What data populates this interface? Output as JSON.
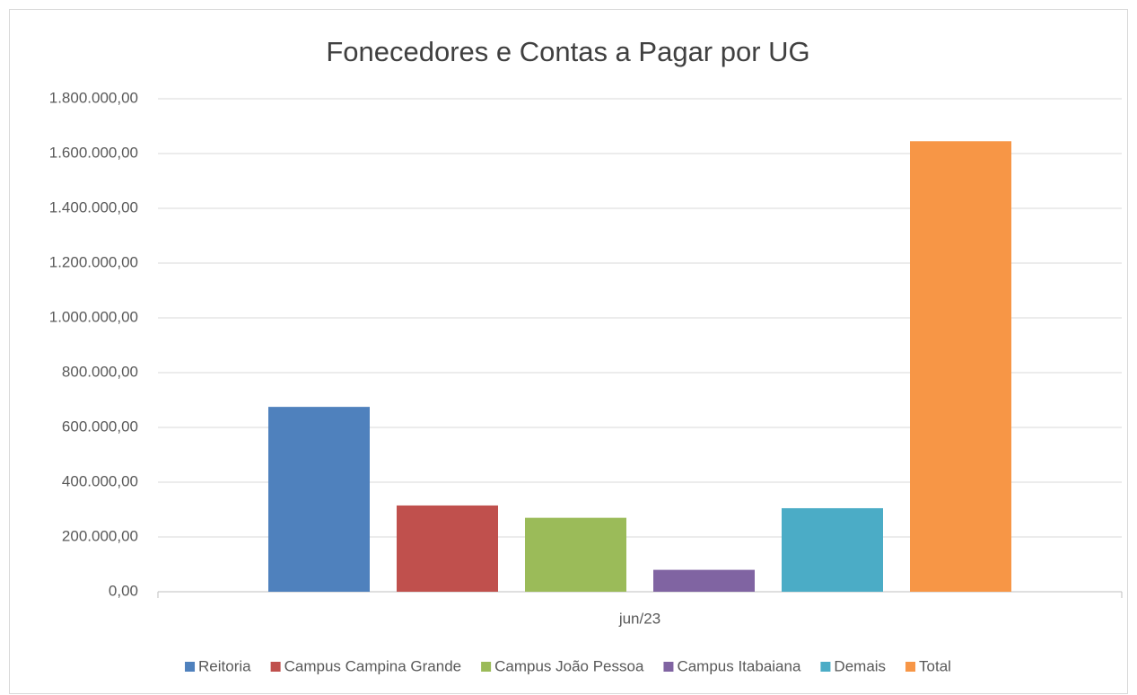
{
  "chart_data": {
    "type": "bar",
    "title": "Fonecedores e Contas a Pagar por UG",
    "categories": [
      "jun/23"
    ],
    "series": [
      {
        "name": "Reitoria",
        "color": "#4f81bd",
        "values": [
          675000
        ]
      },
      {
        "name": "Campus Campina Grande",
        "color": "#c0504d",
        "values": [
          315000
        ]
      },
      {
        "name": "Campus João Pessoa",
        "color": "#9bbb59",
        "values": [
          270000
        ]
      },
      {
        "name": "Campus Itabaiana",
        "color": "#8064a2",
        "values": [
          80000
        ]
      },
      {
        "name": "Demais",
        "color": "#4bacc6",
        "values": [
          305000
        ]
      },
      {
        "name": "Total",
        "color": "#f79646",
        "values": [
          1645000
        ]
      }
    ],
    "ylim": [
      0,
      1800000
    ],
    "yticks": [
      {
        "value": 0,
        "label": "0,00"
      },
      {
        "value": 200000,
        "label": "200.000,00"
      },
      {
        "value": 400000,
        "label": "400.000,00"
      },
      {
        "value": 600000,
        "label": "600.000,00"
      },
      {
        "value": 800000,
        "label": "800.000,00"
      },
      {
        "value": 1000000,
        "label": "1.000.000,00"
      },
      {
        "value": 1200000,
        "label": "1.200.000,00"
      },
      {
        "value": 1400000,
        "label": "1.400.000,00"
      },
      {
        "value": 1600000,
        "label": "1.600.000,00"
      },
      {
        "value": 1800000,
        "label": "1.800.000,00"
      }
    ],
    "grid": true,
    "legend": "bottom"
  }
}
